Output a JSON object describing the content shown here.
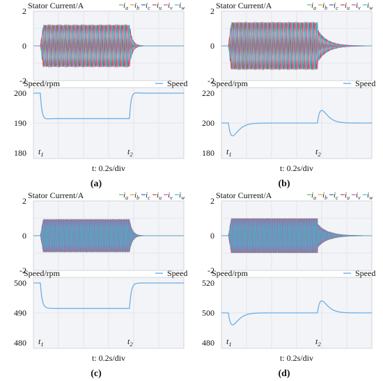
{
  "colors": {
    "ia": "#55c255",
    "ib": "#d6a020",
    "ic": "#3a60c8",
    "iu": "#c84a3a",
    "iv": "#d24ad0",
    "iw": "#35c2c2",
    "speed": "#6aaee8",
    "panel_bg": "#f3f4f7",
    "grid": "#dfe2e8"
  },
  "chart_data": [
    {
      "id": "a",
      "caption": "(a)",
      "timebase": "t: 0.2s/div",
      "current": {
        "type": "line",
        "title": "Stator Current/A",
        "legend": [
          "ia",
          "ib",
          "ic",
          "iu",
          "iv",
          "iw"
        ],
        "yticks": [
          "2",
          "0",
          "-2"
        ],
        "ylim": [
          -2,
          2
        ],
        "amplitude": 1.2,
        "cycles": 22,
        "tail_decay": "fast"
      },
      "speed": {
        "type": "line",
        "title": "Speed/rpm",
        "legend": "Speed",
        "yticks": [
          "200",
          "190",
          "180"
        ],
        "ylim": [
          180,
          200
        ],
        "base": 200,
        "loaded": 191.5,
        "dip": 190.8,
        "overshoot": 200.8,
        "style": "stiff",
        "markers": [
          "t1",
          "t2"
        ]
      }
    },
    {
      "id": "b",
      "caption": "(b)",
      "timebase": "t: 0.2s/div",
      "current": {
        "type": "line",
        "title": "Stator Current/A",
        "legend": [
          "ia",
          "ib",
          "ic",
          "iu",
          "iv",
          "iw"
        ],
        "yticks": [
          "2",
          "0",
          "-2"
        ],
        "ylim": [
          -2,
          2
        ],
        "amplitude": 1.35,
        "cycles": 22,
        "tail_decay": "slow"
      },
      "speed": {
        "type": "line",
        "title": "Speed/rpm",
        "legend": "Speed",
        "yticks": [
          "220",
          "200",
          "180"
        ],
        "ylim": [
          180,
          220
        ],
        "base": 200,
        "loaded": 200,
        "dip": 191.5,
        "overshoot": 208.5,
        "style": "compliant",
        "markers": [
          "t1",
          "t2"
        ]
      }
    },
    {
      "id": "c",
      "caption": "(c)",
      "timebase": "t: 0.2s/div",
      "current": {
        "type": "line",
        "title": "Stator Current/A",
        "legend": [
          "ia",
          "ib",
          "ic",
          "iu",
          "iv",
          "iw"
        ],
        "yticks": [
          "2",
          "0",
          "-2"
        ],
        "ylim": [
          -2,
          2
        ],
        "amplitude": 0.95,
        "cycles": 55,
        "tail_decay": "fast"
      },
      "speed": {
        "type": "line",
        "title": "Speed/rpm",
        "legend": "Speed",
        "yticks": [
          "500",
          "490",
          "480"
        ],
        "ylim": [
          480,
          500
        ],
        "base": 500,
        "loaded": 491.5,
        "dip": 491.5,
        "overshoot": 500,
        "style": "stiff",
        "markers": [
          "t1",
          "t2"
        ]
      }
    },
    {
      "id": "d",
      "caption": "(d)",
      "timebase": "t: 0.2s/div",
      "current": {
        "type": "line",
        "title": "Stator Current/A",
        "legend": [
          "ia",
          "ib",
          "ic",
          "iu",
          "iv",
          "iw"
        ],
        "yticks": [
          "2",
          "0",
          "-2"
        ],
        "ylim": [
          -2,
          2
        ],
        "amplitude": 1.0,
        "cycles": 55,
        "tail_decay": "slow"
      },
      "speed": {
        "type": "line",
        "title": "Speed/rpm",
        "legend": "Speed",
        "yticks": [
          "520",
          "500",
          "480"
        ],
        "ylim": [
          480,
          520
        ],
        "base": 500,
        "loaded": 500,
        "dip": 492,
        "overshoot": 508,
        "style": "compliant",
        "markers": [
          "t1",
          "t2"
        ]
      }
    }
  ]
}
